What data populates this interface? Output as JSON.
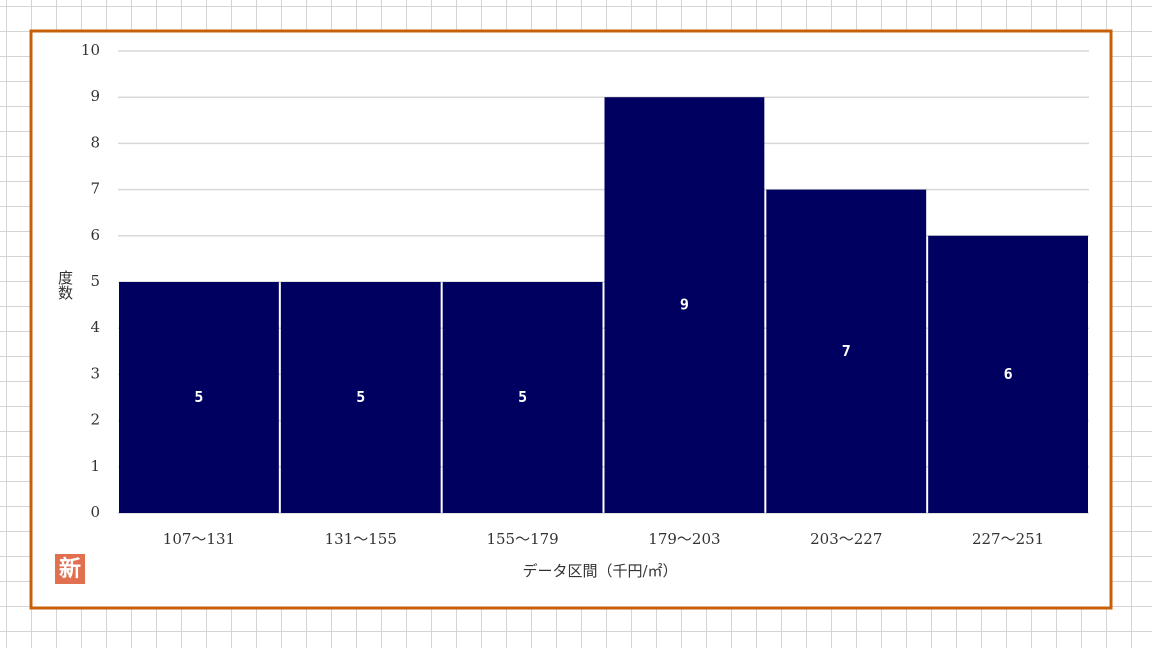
{
  "chart_data": {
    "type": "bar",
    "categories": [
      "107～131",
      "131～155",
      "155～179",
      "179～203",
      "203～227",
      "227～251"
    ],
    "values": [
      5,
      5,
      5,
      9,
      7,
      6
    ],
    "color": "#000060",
    "ylim": [
      0,
      10
    ],
    "yticks": [
      0,
      1,
      2,
      3,
      4,
      5,
      6,
      7,
      8,
      9,
      10
    ],
    "grid": true,
    "y_label": "度数",
    "x_label": "データ区間（千円/㎡）"
  },
  "badge": "新"
}
